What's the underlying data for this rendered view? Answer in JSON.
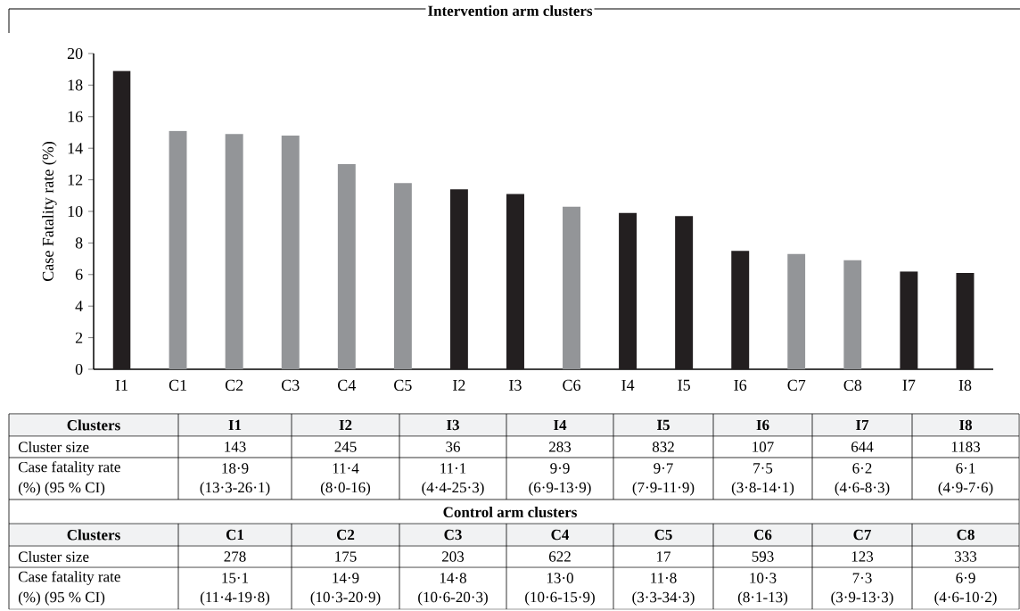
{
  "chart_data": {
    "type": "bar",
    "title": "Intervention arm clusters",
    "ylabel": "Case Fatality  rate (%)",
    "categories": [
      "I1",
      "C1",
      "C2",
      "C3",
      "C4",
      "C5",
      "I2",
      "I3",
      "C6",
      "I4",
      "I5",
      "I6",
      "C7",
      "C8",
      "I7",
      "I8"
    ],
    "values": [
      18.9,
      15.1,
      14.9,
      14.8,
      13.0,
      11.8,
      11.4,
      11.1,
      10.3,
      9.9,
      9.7,
      7.5,
      7.3,
      6.9,
      6.2,
      6.1
    ],
    "colors": [
      "#231f20",
      "#939598",
      "#939598",
      "#939598",
      "#939598",
      "#939598",
      "#231f20",
      "#231f20",
      "#939598",
      "#231f20",
      "#231f20",
      "#231f20",
      "#939598",
      "#939598",
      "#231f20",
      "#231f20"
    ],
    "ylim": [
      0,
      20
    ],
    "yticks": [
      0,
      2,
      4,
      6,
      8,
      10,
      12,
      14,
      16,
      18,
      20
    ],
    "grid": false,
    "annotations": [
      "Clusters",
      "I1",
      "I2",
      "I3",
      "I4",
      "I5",
      "I6",
      "I7",
      "I8",
      "Cluster size",
      "143",
      "245",
      "36",
      "283",
      "832",
      "107",
      "644",
      "1183",
      "Case fatality rate",
      "18·9",
      "11·4",
      "11·1",
      "9·9",
      "9·7",
      "7·5",
      "6·2",
      "6·1",
      "(%) (95 % CI)",
      "(13·3-26·1)",
      "(8·0-16)",
      "(4·4-25·3)",
      "(6·9-13·9)",
      "(7·9-11·9)",
      "(3·8-14·1)",
      "(4·6-8·3)",
      "(4·9-7·6)",
      "Control arm clusters",
      "Clusters",
      "C1",
      "C2",
      "C3",
      "C4",
      "C5",
      "C6",
      "C7",
      "C8",
      "Cluster size",
      "278",
      "175",
      "203",
      "622",
      "17",
      "593",
      "123",
      "333",
      "Case fatality rate",
      "15·1",
      "14·9",
      "14·8",
      "13·0",
      "11·8",
      "10·3",
      "7·3",
      "6·9",
      "(%) (95 % CI)",
      "(11·4-19·8)",
      "(10·3-20·9)",
      "(10·6-20·3)",
      "(10·6-15·9)",
      "(3·3-34·3)",
      "(8·1-13)",
      "(3·9-13·3)",
      "(4·6-10·2)"
    ]
  }
}
